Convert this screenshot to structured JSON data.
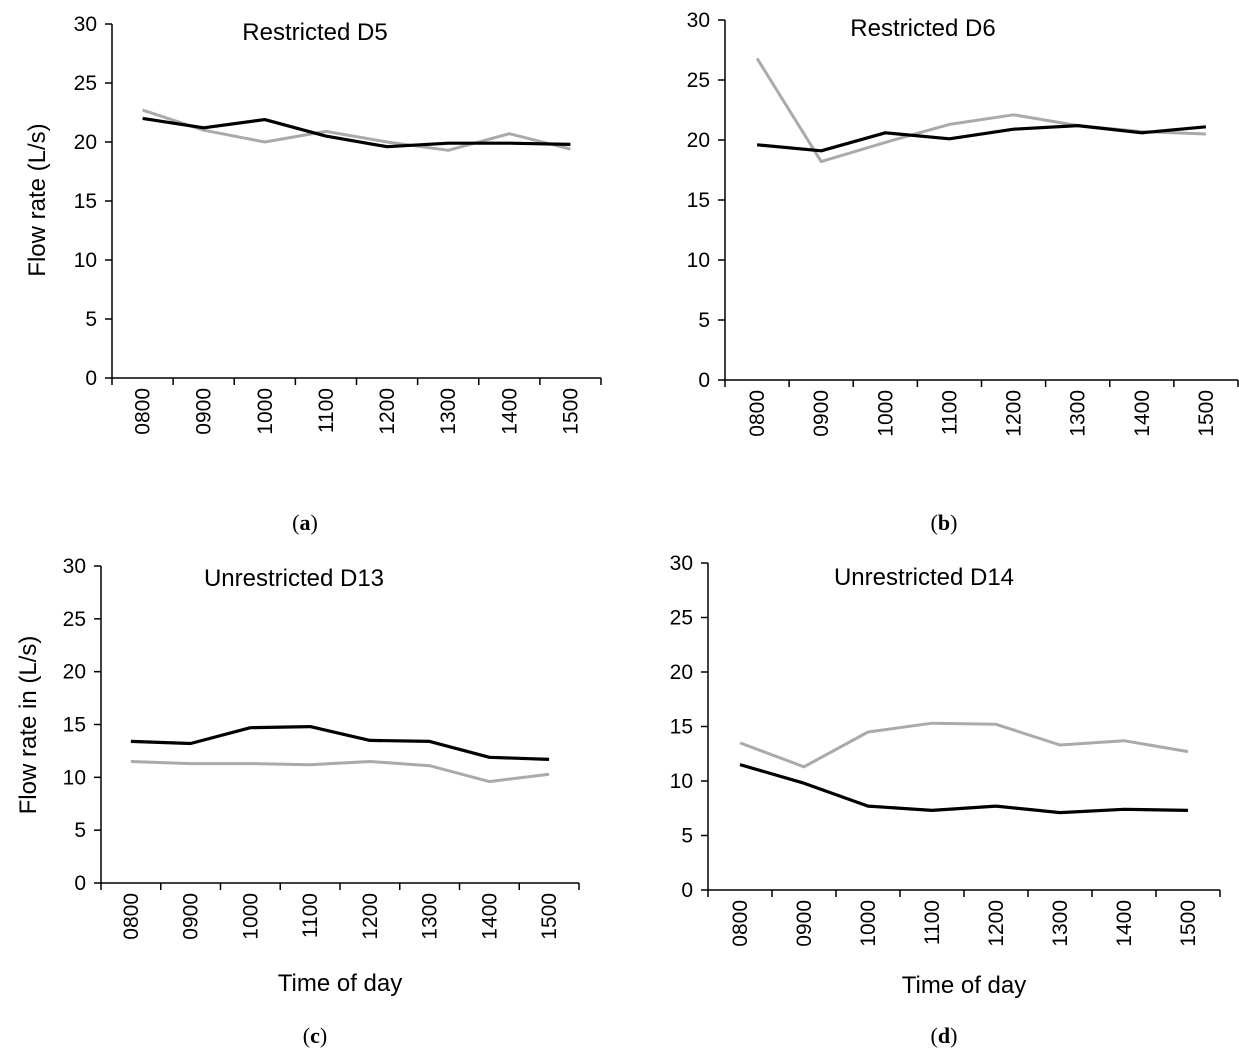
{
  "chart_data": [
    {
      "type": "line",
      "panel": "a",
      "caption_letter": "a",
      "title": "Restricted D5",
      "xlabel": "",
      "ylabel": "Flow rate (L/s)",
      "ylim": [
        0,
        30
      ],
      "yticks": [
        "0",
        "5",
        "10",
        "15",
        "20",
        "25",
        "30"
      ],
      "categories": [
        "0800",
        "0900",
        "1000",
        "1100",
        "1200",
        "1300",
        "1400",
        "1500"
      ],
      "series": [
        {
          "color": "#aaaaaa",
          "values": [
            22.7,
            21.0,
            20.0,
            20.9,
            20.0,
            19.3,
            20.7,
            19.4
          ]
        },
        {
          "color": "#000000",
          "values": [
            22.0,
            21.2,
            21.9,
            20.5,
            19.6,
            19.9,
            19.9,
            19.8
          ]
        }
      ]
    },
    {
      "type": "line",
      "panel": "b",
      "caption_letter": "b",
      "title": "Restricted D6",
      "xlabel": "",
      "ylabel": "",
      "ylim": [
        0,
        30
      ],
      "yticks": [
        "0",
        "5",
        "10",
        "15",
        "20",
        "25",
        "30"
      ],
      "categories": [
        "0800",
        "0900",
        "1000",
        "1100",
        "1200",
        "1300",
        "1400",
        "1500"
      ],
      "series": [
        {
          "color": "#aaaaaa",
          "values": [
            26.8,
            18.2,
            19.8,
            21.3,
            22.1,
            21.2,
            20.7,
            20.5
          ]
        },
        {
          "color": "#000000",
          "values": [
            19.6,
            19.1,
            20.6,
            20.1,
            20.9,
            21.2,
            20.6,
            21.1
          ]
        }
      ]
    },
    {
      "type": "line",
      "panel": "c",
      "caption_letter": "c",
      "title": "Unrestricted D13",
      "xlabel": "Time of day",
      "ylabel": "Flow rate in (L/s)",
      "ylim": [
        0,
        30
      ],
      "yticks": [
        "0",
        "5",
        "10",
        "15",
        "20",
        "25",
        "30"
      ],
      "categories": [
        "0800",
        "0900",
        "1000",
        "1100",
        "1200",
        "1300",
        "1400",
        "1500"
      ],
      "series": [
        {
          "color": "#aaaaaa",
          "values": [
            11.5,
            11.3,
            11.3,
            11.2,
            11.5,
            11.1,
            9.6,
            10.3
          ]
        },
        {
          "color": "#000000",
          "values": [
            13.4,
            13.2,
            14.7,
            14.8,
            13.5,
            13.4,
            11.9,
            11.7
          ]
        }
      ]
    },
    {
      "type": "line",
      "panel": "d",
      "caption_letter": "d",
      "title": "Unrestricted D14",
      "xlabel": "Time of day",
      "ylabel": "",
      "ylim": [
        0,
        30
      ],
      "yticks": [
        "0",
        "5",
        "10",
        "15",
        "20",
        "25",
        "30"
      ],
      "categories": [
        "0800",
        "0900",
        "1000",
        "1100",
        "1200",
        "1300",
        "1400",
        "1500"
      ],
      "series": [
        {
          "color": "#aaaaaa",
          "values": [
            13.5,
            11.3,
            14.5,
            15.3,
            15.2,
            13.3,
            13.7,
            12.7
          ]
        },
        {
          "color": "#000000",
          "values": [
            11.5,
            9.8,
            7.7,
            7.3,
            7.7,
            7.1,
            7.4,
            7.3
          ]
        }
      ]
    }
  ]
}
